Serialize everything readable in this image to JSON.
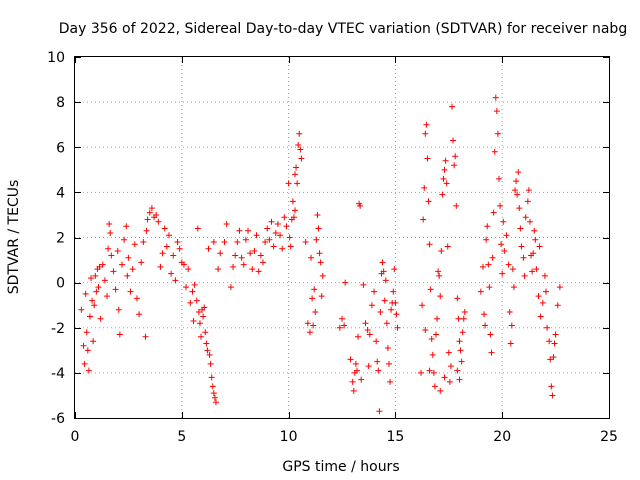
{
  "chart_data": {
    "type": "scatter",
    "title": "Day 356 of 2022, Sidereal Day-to-day VTEC variation (SDTVAR) for receiver nabg",
    "xlabel": "GPS time / hours",
    "ylabel": "SDTVAR / TECUs",
    "xlim": [
      0,
      25
    ],
    "ylim": [
      -6,
      10
    ],
    "xticks": [
      0,
      5,
      10,
      15,
      20,
      25
    ],
    "yticks": [
      -6,
      -4,
      -2,
      0,
      2,
      4,
      6,
      8,
      10
    ],
    "xtick_labels": [
      "0",
      "5",
      "10",
      "15",
      "20",
      "25"
    ],
    "ytick_labels": [
      "-6",
      "-4",
      "-2",
      "0",
      "2",
      "4",
      "6",
      "8",
      "10"
    ],
    "grid": true,
    "marker": "+",
    "color": "#ff0000",
    "series": [
      {
        "name": "SDTVAR",
        "points": [
          [
            0.3,
            -1.2
          ],
          [
            0.4,
            -2.8
          ],
          [
            0.45,
            -3.6
          ],
          [
            0.5,
            -0.5
          ],
          [
            0.55,
            -2.2
          ],
          [
            0.6,
            -3.0
          ],
          [
            0.65,
            -3.9
          ],
          [
            0.7,
            -1.5
          ],
          [
            0.75,
            0.2
          ],
          [
            0.8,
            -0.8
          ],
          [
            0.85,
            -2.6
          ],
          [
            0.9,
            -1.0
          ],
          [
            0.95,
            0.3
          ],
          [
            1.0,
            -0.4
          ],
          [
            1.05,
            0.6
          ],
          [
            1.1,
            -0.2
          ],
          [
            1.15,
            0.7
          ],
          [
            1.2,
            -1.6
          ],
          [
            1.3,
            0.8
          ],
          [
            1.4,
            0.1
          ],
          [
            1.5,
            -0.6
          ],
          [
            1.55,
            1.5
          ],
          [
            1.6,
            2.6
          ],
          [
            1.65,
            2.2
          ],
          [
            1.7,
            1.2
          ],
          [
            1.8,
            0.5
          ],
          [
            1.9,
            -0.3
          ],
          [
            2.0,
            1.4
          ],
          [
            2.05,
            -1.2
          ],
          [
            2.1,
            -2.3
          ],
          [
            2.2,
            0.8
          ],
          [
            2.3,
            1.9
          ],
          [
            2.4,
            2.5
          ],
          [
            2.45,
            0.3
          ],
          [
            2.5,
            1.1
          ],
          [
            2.6,
            -0.4
          ],
          [
            2.7,
            0.6
          ],
          [
            2.8,
            1.7
          ],
          [
            2.9,
            -0.7
          ],
          [
            3.0,
            -1.4
          ],
          [
            3.1,
            0.9
          ],
          [
            3.2,
            1.8
          ],
          [
            3.3,
            -2.4
          ],
          [
            3.35,
            2.3
          ],
          [
            3.4,
            2.8
          ],
          [
            3.5,
            3.1
          ],
          [
            3.6,
            3.3
          ],
          [
            3.7,
            2.9
          ],
          [
            3.8,
            3.0
          ],
          [
            3.9,
            2.7
          ],
          [
            4.0,
            0.7
          ],
          [
            4.1,
            1.3
          ],
          [
            4.2,
            2.4
          ],
          [
            4.3,
            1.6
          ],
          [
            4.4,
            2.1
          ],
          [
            4.5,
            0.4
          ],
          [
            4.6,
            1.2
          ],
          [
            4.7,
            0.1
          ],
          [
            4.8,
            1.8
          ],
          [
            4.9,
            1.5
          ],
          [
            5.0,
            0.9
          ],
          [
            5.1,
            0.8
          ],
          [
            5.2,
            -0.2
          ],
          [
            5.3,
            0.6
          ],
          [
            5.4,
            -0.9
          ],
          [
            5.5,
            -0.4
          ],
          [
            5.55,
            -1.7
          ],
          [
            5.6,
            -0.1
          ],
          [
            5.7,
            -0.8
          ],
          [
            5.75,
            2.4
          ],
          [
            5.8,
            -1.3
          ],
          [
            5.85,
            -1.8
          ],
          [
            5.9,
            -2.4
          ],
          [
            5.95,
            -1.2
          ],
          [
            6.0,
            -1.5
          ],
          [
            6.05,
            -1.1
          ],
          [
            6.1,
            -2.2
          ],
          [
            6.15,
            -2.7
          ],
          [
            6.2,
            -3.0
          ],
          [
            6.3,
            -3.2
          ],
          [
            6.35,
            -3.6
          ],
          [
            6.4,
            -4.2
          ],
          [
            6.45,
            -4.6
          ],
          [
            6.5,
            -4.9
          ],
          [
            6.55,
            -5.1
          ],
          [
            6.6,
            -5.3
          ],
          [
            6.25,
            1.5
          ],
          [
            6.5,
            1.8
          ],
          [
            6.7,
            0.6
          ],
          [
            6.8,
            1.3
          ],
          [
            7.0,
            1.8
          ],
          [
            7.1,
            2.6
          ],
          [
            7.3,
            -0.2
          ],
          [
            7.4,
            0.7
          ],
          [
            7.5,
            1.2
          ],
          [
            7.6,
            1.8
          ],
          [
            7.7,
            2.3
          ],
          [
            7.8,
            1.1
          ],
          [
            7.9,
            0.8
          ],
          [
            8.0,
            1.9
          ],
          [
            8.1,
            2.3
          ],
          [
            8.2,
            1.3
          ],
          [
            8.3,
            0.6
          ],
          [
            8.4,
            1.4
          ],
          [
            8.5,
            2.1
          ],
          [
            8.6,
            0.5
          ],
          [
            8.7,
            1.2
          ],
          [
            8.8,
            0.9
          ],
          [
            8.9,
            1.8
          ],
          [
            9.0,
            2.4
          ],
          [
            9.1,
            1.9
          ],
          [
            9.2,
            2.7
          ],
          [
            9.3,
            1.6
          ],
          [
            9.4,
            2.2
          ],
          [
            9.5,
            2.6
          ],
          [
            9.6,
            2.1
          ],
          [
            9.7,
            1.5
          ],
          [
            9.8,
            2.9
          ],
          [
            9.9,
            2.5
          ],
          [
            10.0,
            4.4
          ],
          [
            10.05,
            2.0
          ],
          [
            10.1,
            1.6
          ],
          [
            10.15,
            2.8
          ],
          [
            10.2,
            3.6
          ],
          [
            10.25,
            2.9
          ],
          [
            10.3,
            3.2
          ],
          [
            10.35,
            5.1
          ],
          [
            10.4,
            4.4
          ],
          [
            10.45,
            6.1
          ],
          [
            10.5,
            6.6
          ],
          [
            10.55,
            5.9
          ],
          [
            10.6,
            5.5
          ],
          [
            10.3,
            4.8
          ],
          [
            10.8,
            1.8
          ],
          [
            10.9,
            -1.8
          ],
          [
            11.0,
            -2.2
          ],
          [
            11.05,
            1.1
          ],
          [
            11.1,
            -0.7
          ],
          [
            11.2,
            -0.3
          ],
          [
            11.3,
            1.9
          ],
          [
            11.35,
            3.0
          ],
          [
            11.4,
            2.4
          ],
          [
            11.45,
            1.3
          ],
          [
            11.5,
            0.9
          ],
          [
            11.55,
            -0.6
          ],
          [
            11.6,
            0.3
          ],
          [
            11.15,
            -1.9
          ],
          [
            11.25,
            -1.3
          ],
          [
            12.4,
            -2.0
          ],
          [
            12.5,
            -1.6
          ],
          [
            12.6,
            -1.9
          ],
          [
            12.65,
            0.0
          ],
          [
            12.9,
            -3.4
          ],
          [
            13.0,
            -4.4
          ],
          [
            13.05,
            -4.8
          ],
          [
            13.1,
            -4.0
          ],
          [
            13.15,
            -3.6
          ],
          [
            13.2,
            -3.9
          ],
          [
            13.25,
            -2.4
          ],
          [
            13.3,
            3.5
          ],
          [
            13.35,
            3.4
          ],
          [
            13.4,
            -4.3
          ],
          [
            13.5,
            -0.1
          ],
          [
            13.6,
            -1.8
          ],
          [
            13.7,
            -2.1
          ],
          [
            13.75,
            -3.7
          ],
          [
            13.8,
            -2.3
          ],
          [
            13.9,
            -1.0
          ],
          [
            14.0,
            -0.4
          ],
          [
            14.1,
            -2.6
          ],
          [
            14.15,
            -3.5
          ],
          [
            14.2,
            -3.9
          ],
          [
            14.25,
            -5.7
          ],
          [
            14.3,
            -1.3
          ],
          [
            14.35,
            0.4
          ],
          [
            14.4,
            0.9
          ],
          [
            14.45,
            0.5
          ],
          [
            14.5,
            -0.8
          ],
          [
            14.55,
            0.1
          ],
          [
            14.6,
            -1.8
          ],
          [
            14.65,
            -2.9
          ],
          [
            14.7,
            -3.6
          ],
          [
            14.75,
            -4.4
          ],
          [
            14.8,
            -1.2
          ],
          [
            14.85,
            -0.9
          ],
          [
            14.9,
            -0.4
          ],
          [
            14.95,
            0.6
          ],
          [
            15.0,
            -0.9
          ],
          [
            15.05,
            -1.4
          ],
          [
            15.1,
            -2.0
          ],
          [
            16.2,
            -4.0
          ],
          [
            16.25,
            -1.0
          ],
          [
            16.3,
            2.8
          ],
          [
            16.35,
            4.2
          ],
          [
            16.4,
            6.6
          ],
          [
            16.45,
            7.0
          ],
          [
            16.5,
            5.5
          ],
          [
            16.55,
            3.6
          ],
          [
            16.6,
            1.7
          ],
          [
            16.65,
            -0.3
          ],
          [
            16.7,
            -2.5
          ],
          [
            16.75,
            -3.2
          ],
          [
            16.8,
            -4.0
          ],
          [
            16.85,
            -4.6
          ],
          [
            16.9,
            -2.3
          ],
          [
            16.95,
            -1.6
          ],
          [
            17.0,
            0.5
          ],
          [
            17.05,
            0.3
          ],
          [
            17.1,
            -0.6
          ],
          [
            17.15,
            1.4
          ],
          [
            17.2,
            3.9
          ],
          [
            17.25,
            4.6
          ],
          [
            17.3,
            5.0
          ],
          [
            17.35,
            5.4
          ],
          [
            17.4,
            4.4
          ],
          [
            17.45,
            1.6
          ],
          [
            17.5,
            -3.1
          ],
          [
            17.55,
            -4.4
          ],
          [
            17.6,
            -3.7
          ],
          [
            17.65,
            7.8
          ],
          [
            17.7,
            6.3
          ],
          [
            17.75,
            5.2
          ],
          [
            17.8,
            5.6
          ],
          [
            17.85,
            3.4
          ],
          [
            17.9,
            -0.7
          ],
          [
            17.95,
            -1.6
          ],
          [
            18.0,
            -2.6
          ],
          [
            18.05,
            -3.0
          ],
          [
            18.1,
            -3.5
          ],
          [
            18.15,
            -2.2
          ],
          [
            18.2,
            -1.6
          ],
          [
            18.25,
            -1.3
          ],
          [
            16.6,
            -3.9
          ],
          [
            17.1,
            -4.8
          ],
          [
            17.3,
            -4.2
          ],
          [
            17.9,
            -3.9
          ],
          [
            18.0,
            -4.3
          ],
          [
            16.4,
            -2.1
          ],
          [
            19.0,
            -0.4
          ],
          [
            19.1,
            0.7
          ],
          [
            19.15,
            -1.4
          ],
          [
            19.2,
            -1.9
          ],
          [
            19.25,
            1.9
          ],
          [
            19.3,
            2.5
          ],
          [
            19.35,
            0.8
          ],
          [
            19.4,
            -0.2
          ],
          [
            19.45,
            -2.3
          ],
          [
            19.5,
            -3.1
          ],
          [
            19.55,
            1.1
          ],
          [
            19.6,
            3.1
          ],
          [
            19.65,
            5.8
          ],
          [
            19.7,
            8.2
          ],
          [
            19.75,
            7.6
          ],
          [
            19.8,
            6.6
          ],
          [
            19.85,
            4.6
          ],
          [
            19.9,
            3.4
          ],
          [
            19.95,
            1.7
          ],
          [
            20.0,
            0.4
          ],
          [
            20.05,
            2.7
          ],
          [
            20.1,
            1.4
          ],
          [
            20.2,
            2.1
          ],
          [
            20.3,
            0.8
          ],
          [
            20.35,
            -1.3
          ],
          [
            20.4,
            -2.7
          ],
          [
            20.45,
            -1.9
          ],
          [
            20.5,
            0.6
          ],
          [
            20.55,
            -0.2
          ],
          [
            20.6,
            4.1
          ],
          [
            20.65,
            4.5
          ],
          [
            20.7,
            3.9
          ],
          [
            20.75,
            4.9
          ],
          [
            20.8,
            3.3
          ],
          [
            20.85,
            2.4
          ],
          [
            20.9,
            1.6
          ],
          [
            21.0,
            1.1
          ],
          [
            21.05,
            0.3
          ],
          [
            21.1,
            2.9
          ],
          [
            21.2,
            3.6
          ],
          [
            21.25,
            4.1
          ],
          [
            21.3,
            2.7
          ],
          [
            21.35,
            1.2
          ],
          [
            21.4,
            0.5
          ],
          [
            21.45,
            1.3
          ],
          [
            21.5,
            2.3
          ],
          [
            21.55,
            1.9
          ],
          [
            21.6,
            0.6
          ],
          [
            21.7,
            -0.6
          ],
          [
            21.75,
            1.6
          ],
          [
            21.8,
            -1.5
          ],
          [
            21.9,
            -0.9
          ],
          [
            22.0,
            0.3
          ],
          [
            22.05,
            -0.4
          ],
          [
            22.1,
            -2.0
          ],
          [
            22.2,
            -2.6
          ],
          [
            22.25,
            -3.4
          ],
          [
            22.3,
            -4.6
          ],
          [
            22.35,
            -5.0
          ],
          [
            22.4,
            -3.3
          ],
          [
            22.45,
            -2.7
          ],
          [
            22.5,
            -2.3
          ],
          [
            22.6,
            -1.0
          ],
          [
            22.7,
            -0.2
          ]
        ]
      }
    ]
  }
}
